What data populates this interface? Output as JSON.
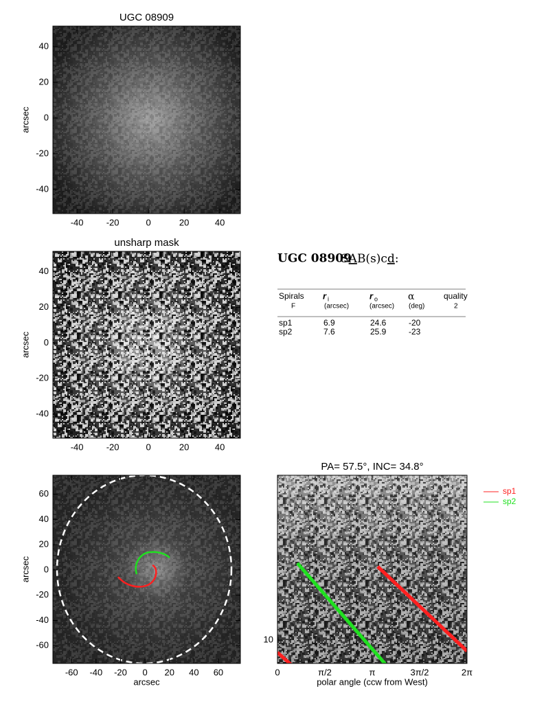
{
  "panels": [
    {
      "title": "UGC 08909",
      "ylabel": "arcsec",
      "xlim": [
        -53.5,
        51.5
      ],
      "ylim": [
        -53.5,
        51.5
      ],
      "xticks": [
        -40,
        -20,
        0,
        20,
        40
      ],
      "yticks": [
        -40,
        -20,
        0,
        20,
        40
      ]
    },
    {
      "title": "unsharp mask",
      "ylabel": "arcsec",
      "xlim": [
        -53.5,
        51.5
      ],
      "ylim": [
        -53.5,
        51.5
      ],
      "xticks": [
        -40,
        -20,
        0,
        20,
        40
      ],
      "yticks": [
        -40,
        -20,
        0,
        20,
        40
      ]
    },
    {
      "xlabel": "arcsec",
      "ylabel": "arcsec",
      "xlim": [
        -75.3,
        78
      ],
      "ylim": [
        -74,
        75
      ],
      "xticks": [
        -60,
        -40,
        -20,
        0,
        20,
        40,
        60
      ],
      "yticks": [
        -60,
        -40,
        -20,
        0,
        20,
        40,
        60
      ]
    },
    {
      "title": "PA= 57.5°, INC= 34.8°",
      "xlabel": "polar angle (ccw from West)",
      "xlim": [
        0,
        6.2832
      ],
      "ylim": [
        8.5,
        31.6
      ],
      "ylog": true,
      "xticks": [
        0,
        {
          "value": 1.5708,
          "label": "π/2"
        },
        {
          "value": 3.1416,
          "label": "π"
        },
        {
          "value": 4.7124,
          "label": "3π/2"
        },
        {
          "value": 6.2832,
          "label": "2π"
        }
      ],
      "yticks": [
        10
      ],
      "legend": [
        {
          "name": "sp1",
          "color": "#ff2020"
        },
        {
          "name": "sp2",
          "color": "#20e020"
        }
      ]
    }
  ],
  "info": {
    "name": "UGC 08909",
    "class": [
      "S",
      "A",
      "B(s)c",
      "d",
      ":"
    ],
    "header": [
      "Spirals",
      "F",
      "r",
      "i",
      "(arcsec)",
      "r",
      "o",
      "(arcsec)",
      "α",
      "(deg)",
      "quality",
      "2"
    ],
    "rows": [
      [
        "sp1",
        "6.9",
        "24.6",
        "-20"
      ],
      [
        "sp2",
        "7.6",
        "25.9",
        "-23"
      ]
    ]
  }
}
